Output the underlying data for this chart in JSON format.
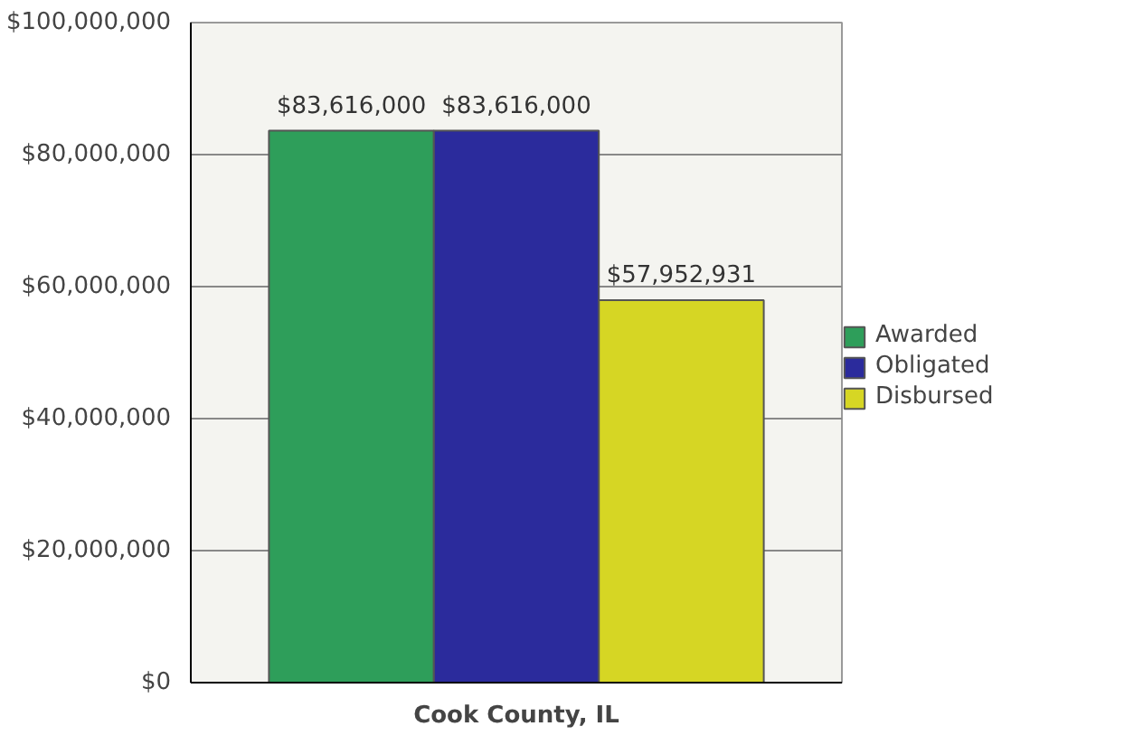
{
  "chart_data": {
    "type": "bar",
    "categories": [
      "Cook County, IL"
    ],
    "series": [
      {
        "name": "Awarded",
        "color": "#2e9e5a",
        "values": [
          83616000
        ],
        "value_labels": [
          "$83,616,000"
        ]
      },
      {
        "name": "Obligated",
        "color": "#2b2b9c",
        "values": [
          83616000
        ],
        "value_labels": [
          "$83,616,000"
        ]
      },
      {
        "name": "Disbursed",
        "color": "#d6d624",
        "values": [
          57952931
        ],
        "value_labels": [
          "$57,952,931"
        ]
      }
    ],
    "ylim": [
      0,
      100000000
    ],
    "yticks": [
      {
        "value": 0,
        "label": "$0"
      },
      {
        "value": 20000000,
        "label": "$20,000,000"
      },
      {
        "value": 40000000,
        "label": "$40,000,000"
      },
      {
        "value": 60000000,
        "label": "$60,000,000"
      },
      {
        "value": 80000000,
        "label": "$80,000,000"
      },
      {
        "value": 100000000,
        "label": "$100,000,000"
      }
    ],
    "grid": "y",
    "legend": "right"
  }
}
